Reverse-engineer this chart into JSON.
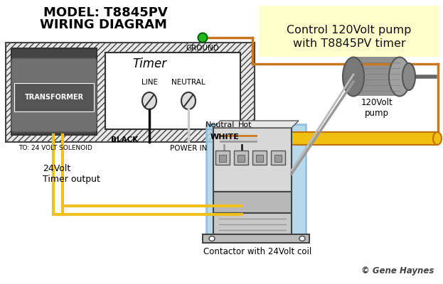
{
  "title_line1": "MODEL: T8845PV",
  "title_line2": "WIRING DIAGRAM",
  "bg_color": "#ffffff",
  "title_color": "#000000",
  "right_label_line1": "Control 120Volt pump",
  "right_label_line2": "with T8845PV timer",
  "right_label_bg": "#ffffcc",
  "copyright": "© Gene Haynes",
  "wire_black": "#111111",
  "wire_white": "#cccccc",
  "wire_yellow": "#f0c020",
  "wire_copper": "#c87820",
  "wire_gray": "#999999",
  "wire_gray2": "#bbbbbb",
  "contactor_bg": "#aad4e8",
  "ground_green": "#22bb22",
  "cable_yellow": "#f0c010"
}
